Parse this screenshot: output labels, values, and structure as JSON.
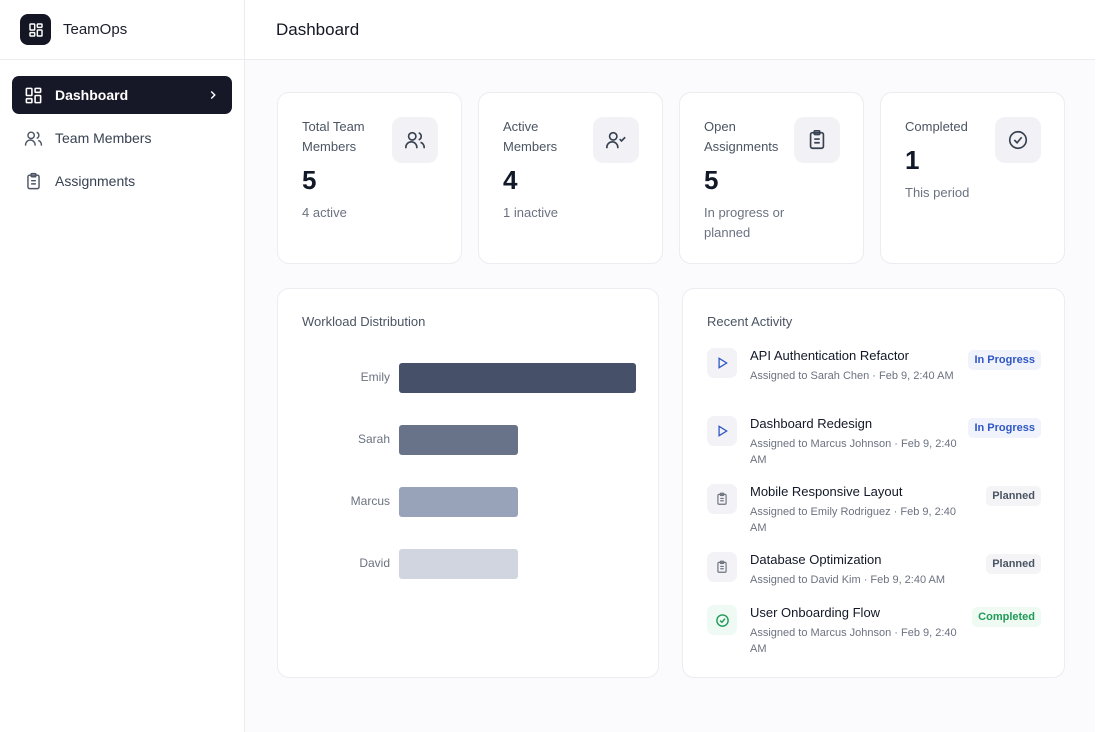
{
  "app": {
    "name": "TeamOps",
    "page_title": "Dashboard"
  },
  "sidebar": {
    "items": [
      {
        "label": "Dashboard",
        "icon": "dashboard-grid-icon",
        "active": true
      },
      {
        "label": "Team Members",
        "icon": "users-icon",
        "active": false
      },
      {
        "label": "Assignments",
        "icon": "clipboard-list-icon",
        "active": false
      }
    ]
  },
  "stats": [
    {
      "label": "Total Team Members",
      "value": "5",
      "sub": "4 active",
      "icon": "users-icon"
    },
    {
      "label": "Active Members",
      "value": "4",
      "sub": "1 inactive",
      "icon": "user-check-icon"
    },
    {
      "label": "Open Assignments",
      "value": "5",
      "sub": "In progress or planned",
      "icon": "clipboard-list-icon"
    },
    {
      "label": "Completed",
      "value": "1",
      "sub": "This period",
      "icon": "check-circle-icon"
    }
  ],
  "workload": {
    "title": "Workload Distribution",
    "chart_data": {
      "type": "bar",
      "orientation": "horizontal",
      "categories": [
        "Emily",
        "Sarah",
        "Marcus",
        "David"
      ],
      "values": [
        2,
        1,
        1,
        1
      ],
      "colors": [
        "#475069",
        "#687288",
        "#98a2b8",
        "#d1d5e0"
      ]
    }
  },
  "activity": {
    "title": "Recent Activity",
    "items": [
      {
        "title": "API Authentication Refactor",
        "meta": "Assigned to Sarah Chen · Feb 9, 2:40 AM",
        "status": "In Progress",
        "kind": "progress",
        "icon": "play-icon"
      },
      {
        "title": "Dashboard Redesign",
        "meta": "Assigned to Marcus Johnson · Feb 9, 2:40 AM",
        "status": "In Progress",
        "kind": "progress",
        "icon": "play-icon"
      },
      {
        "title": "Mobile Responsive Layout",
        "meta": "Assigned to Emily Rodriguez · Feb 9, 2:40 AM",
        "status": "Planned",
        "kind": "planned",
        "icon": "clipboard-icon"
      },
      {
        "title": "Database Optimization",
        "meta": "Assigned to David Kim · Feb 9, 2:40 AM",
        "status": "Planned",
        "kind": "planned",
        "icon": "clipboard-icon"
      },
      {
        "title": "User Onboarding Flow",
        "meta": "Assigned to Marcus Johnson · Feb 9, 2:40 AM",
        "status": "Completed",
        "kind": "completed",
        "icon": "check-circle-icon"
      }
    ]
  },
  "colors": {
    "primary_dark": "#161827",
    "progress": "#2f57c4",
    "completed": "#1f9a57"
  }
}
